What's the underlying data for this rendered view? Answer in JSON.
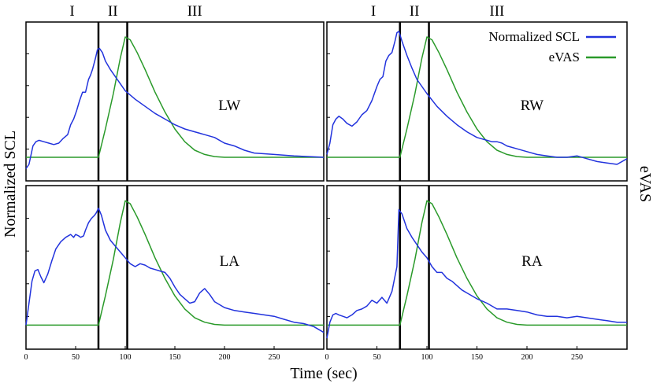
{
  "chart_data": {
    "type": "line",
    "ylabel_left": "Normalized SCL",
    "ylabel_right": "eVAS",
    "xlabel": "Time (sec)",
    "xlim": [
      0,
      300
    ],
    "ylim": [
      0,
      1
    ],
    "x_ticks": [
      0,
      50,
      100,
      150,
      200,
      250
    ],
    "phase_labels": [
      "I",
      "II",
      "III"
    ],
    "phase_boundaries": [
      73,
      102
    ],
    "legend": {
      "position": "top-right of top-right panel",
      "entries": [
        {
          "name": "Normalized SCL",
          "color": "#2233dd"
        },
        {
          "name": "eVAS",
          "color": "#2a9a2a"
        }
      ]
    },
    "evas_curve": {
      "onset_time": 73,
      "peak_time": 100,
      "peak_value": 0.95,
      "baseline": 0.1,
      "x": [
        0,
        73,
        80,
        88,
        95,
        100,
        105,
        112,
        120,
        130,
        140,
        150,
        160,
        170,
        180,
        190,
        200,
        220,
        250,
        300
      ],
      "y": [
        0.1,
        0.1,
        0.3,
        0.55,
        0.8,
        0.95,
        0.93,
        0.84,
        0.72,
        0.56,
        0.42,
        0.3,
        0.21,
        0.15,
        0.12,
        0.105,
        0.1,
        0.1,
        0.1,
        0.1
      ]
    },
    "panels": [
      {
        "label": "LW",
        "scl": {
          "x": [
            0,
            3,
            7,
            10,
            13,
            18,
            23,
            28,
            33,
            37,
            42,
            45,
            48,
            51,
            54,
            57,
            60,
            63,
            65,
            67,
            70,
            72,
            74,
            77,
            80,
            85,
            90,
            95,
            100,
            110,
            120,
            130,
            140,
            150,
            160,
            170,
            180,
            190,
            200,
            210,
            220,
            230,
            250,
            270,
            300
          ],
          "y": [
            0.02,
            0.05,
            0.18,
            0.21,
            0.22,
            0.21,
            0.2,
            0.19,
            0.2,
            0.23,
            0.26,
            0.33,
            0.37,
            0.43,
            0.5,
            0.56,
            0.56,
            0.65,
            0.68,
            0.72,
            0.8,
            0.86,
            0.87,
            0.84,
            0.78,
            0.72,
            0.67,
            0.62,
            0.57,
            0.51,
            0.46,
            0.41,
            0.37,
            0.33,
            0.3,
            0.28,
            0.26,
            0.24,
            0.2,
            0.18,
            0.15,
            0.13,
            0.12,
            0.11,
            0.1
          ]
        }
      },
      {
        "label": "RW",
        "scl": {
          "x": [
            0,
            3,
            6,
            9,
            12,
            16,
            20,
            25,
            30,
            35,
            40,
            45,
            50,
            53,
            56,
            59,
            62,
            65,
            68,
            70,
            72,
            75,
            80,
            85,
            90,
            100,
            110,
            120,
            130,
            140,
            150,
            160,
            165,
            170,
            175,
            180,
            190,
            200,
            210,
            220,
            230,
            240,
            250,
            260,
            270,
            280,
            290,
            300
          ],
          "y": [
            0.12,
            0.2,
            0.33,
            0.37,
            0.39,
            0.37,
            0.34,
            0.32,
            0.35,
            0.4,
            0.43,
            0.5,
            0.6,
            0.65,
            0.67,
            0.78,
            0.82,
            0.84,
            0.92,
            0.98,
            0.99,
            0.92,
            0.82,
            0.73,
            0.65,
            0.55,
            0.46,
            0.39,
            0.33,
            0.28,
            0.24,
            0.22,
            0.21,
            0.21,
            0.2,
            0.18,
            0.16,
            0.14,
            0.12,
            0.11,
            0.1,
            0.1,
            0.11,
            0.09,
            0.07,
            0.06,
            0.05,
            0.09
          ]
        }
      },
      {
        "label": "LA",
        "scl": {
          "x": [
            0,
            3,
            6,
            9,
            12,
            15,
            18,
            22,
            26,
            30,
            35,
            40,
            45,
            48,
            50,
            53,
            55,
            58,
            60,
            63,
            66,
            69,
            71,
            73,
            76,
            80,
            85,
            90,
            95,
            100,
            105,
            110,
            115,
            120,
            125,
            130,
            135,
            140,
            145,
            150,
            155,
            160,
            165,
            170,
            175,
            180,
            185,
            190,
            200,
            210,
            220,
            230,
            240,
            250,
            260,
            270,
            280,
            290,
            300
          ],
          "y": [
            0.1,
            0.25,
            0.4,
            0.47,
            0.48,
            0.43,
            0.39,
            0.45,
            0.54,
            0.62,
            0.67,
            0.7,
            0.72,
            0.7,
            0.72,
            0.71,
            0.7,
            0.71,
            0.75,
            0.8,
            0.83,
            0.85,
            0.87,
            0.9,
            0.85,
            0.75,
            0.68,
            0.64,
            0.6,
            0.56,
            0.52,
            0.5,
            0.52,
            0.51,
            0.49,
            0.48,
            0.47,
            0.46,
            0.42,
            0.36,
            0.31,
            0.28,
            0.25,
            0.26,
            0.32,
            0.35,
            0.31,
            0.26,
            0.22,
            0.2,
            0.19,
            0.18,
            0.17,
            0.16,
            0.14,
            0.12,
            0.11,
            0.09,
            0.05
          ]
        }
      },
      {
        "label": "RA",
        "scl": {
          "x": [
            0,
            3,
            6,
            9,
            12,
            16,
            20,
            25,
            30,
            35,
            40,
            45,
            50,
            55,
            60,
            65,
            70,
            72,
            75,
            80,
            85,
            90,
            95,
            100,
            105,
            110,
            115,
            120,
            125,
            130,
            135,
            140,
            150,
            160,
            170,
            180,
            190,
            200,
            210,
            220,
            230,
            240,
            250,
            260,
            270,
            280,
            290,
            300
          ],
          "y": [
            0.01,
            0.12,
            0.17,
            0.18,
            0.17,
            0.16,
            0.15,
            0.17,
            0.2,
            0.21,
            0.23,
            0.27,
            0.25,
            0.29,
            0.25,
            0.33,
            0.5,
            0.89,
            0.86,
            0.76,
            0.7,
            0.65,
            0.6,
            0.56,
            0.5,
            0.46,
            0.46,
            0.42,
            0.4,
            0.37,
            0.34,
            0.32,
            0.28,
            0.25,
            0.21,
            0.21,
            0.2,
            0.19,
            0.17,
            0.16,
            0.16,
            0.15,
            0.16,
            0.15,
            0.14,
            0.13,
            0.12,
            0.12
          ]
        }
      }
    ]
  }
}
